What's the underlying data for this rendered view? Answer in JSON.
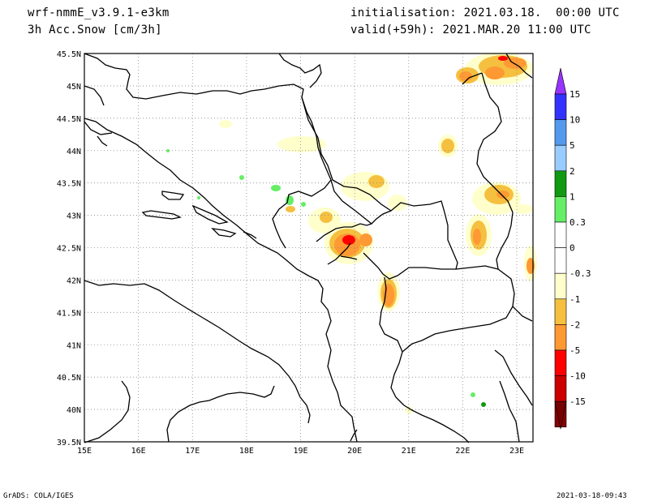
{
  "header": {
    "model": "wrf-nmmE_v3.9.1-e3km",
    "field": "3h Acc.Snow [cm/3h]",
    "init": "initialisation: 2021.03.18.  00:00 UTC",
    "valid": "valid(+59h): 2021.MAR.20 11:00 UTC"
  },
  "footer": {
    "left": "GrADS: COLA/IGES",
    "right": "2021-03-18-09:43"
  },
  "axes": {
    "lon_ticks": [
      "15E",
      "16E",
      "17E",
      "18E",
      "19E",
      "20E",
      "21E",
      "22E",
      "23E"
    ],
    "lat_ticks": [
      "45.5N",
      "45N",
      "44.5N",
      "44N",
      "43.5N",
      "43N",
      "42.5N",
      "42N",
      "41.5N",
      "41N",
      "40.5N",
      "40N",
      "39.5N"
    ],
    "lon_range": [
      15,
      23.3
    ],
    "lat_range": [
      39.5,
      45.5
    ],
    "grid": "dotted"
  },
  "colorbar": {
    "labels": [
      "15",
      "10",
      "5",
      "2",
      "1",
      "0.3",
      "0",
      "-0.3",
      "-1",
      "-2",
      "-5",
      "-10",
      "-15"
    ],
    "colors": [
      "#3333ff",
      "#5599ee",
      "#99ccff",
      "#119911",
      "#66ee66",
      "#ffffff",
      "#ffffff",
      "#ffffcc",
      "#f5c040",
      "#ff9933",
      "#ff0000",
      "#cc0000",
      "#880000"
    ],
    "top_arrow_color": "#9933ff",
    "bottom_arrow_color": "#770000"
  },
  "colors": {
    "light_yellow": "#ffffcc",
    "yellow_orange": "#f5c040",
    "orange": "#ff9933",
    "red": "#ff0000",
    "green": "#66ee66"
  }
}
